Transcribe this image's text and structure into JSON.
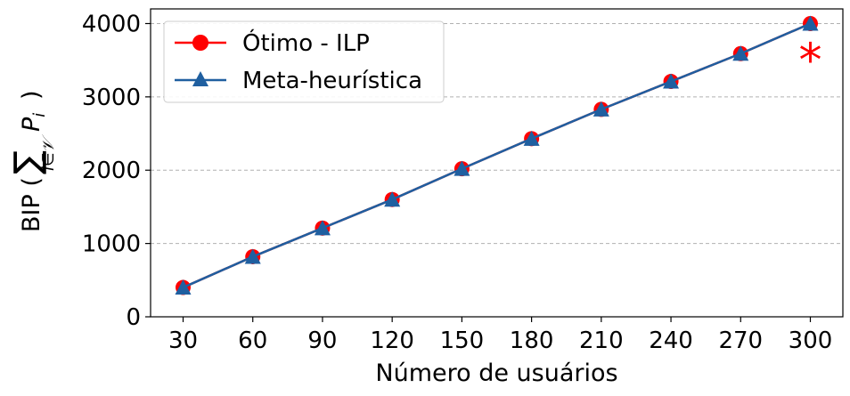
{
  "chart_data": {
    "type": "line",
    "xlabel": "Número de usuários",
    "ylabel": {
      "prefix": "BIP (",
      "symbol": "∑",
      "subscript": "i∈",
      "subscript_set": "𝒱",
      "term": "P",
      "term_sub": "i",
      "suffix": ")"
    },
    "x": [
      30,
      60,
      90,
      120,
      150,
      180,
      210,
      240,
      270,
      300
    ],
    "xlim": [
      16,
      314
    ],
    "ylim": [
      0,
      4200
    ],
    "yticks": [
      0,
      1000,
      2000,
      3000,
      4000
    ],
    "grid": "y-dashed",
    "legend_position": "top-left",
    "series": [
      {
        "name": "Ótimo - ILP",
        "marker": "circle",
        "color": "#ff0000",
        "values": [
          400,
          820,
          1210,
          1600,
          2020,
          2430,
          2830,
          3210,
          3590,
          4000
        ]
      },
      {
        "name": "Meta-heurística",
        "marker": "triangle",
        "color": "#1f5fa0",
        "values": [
          400,
          820,
          1210,
          1600,
          2020,
          2430,
          2830,
          3210,
          3590,
          4000
        ]
      }
    ],
    "annotations": [
      {
        "text": "*",
        "x": 300,
        "y": 3650,
        "color": "#ff0000"
      }
    ]
  }
}
